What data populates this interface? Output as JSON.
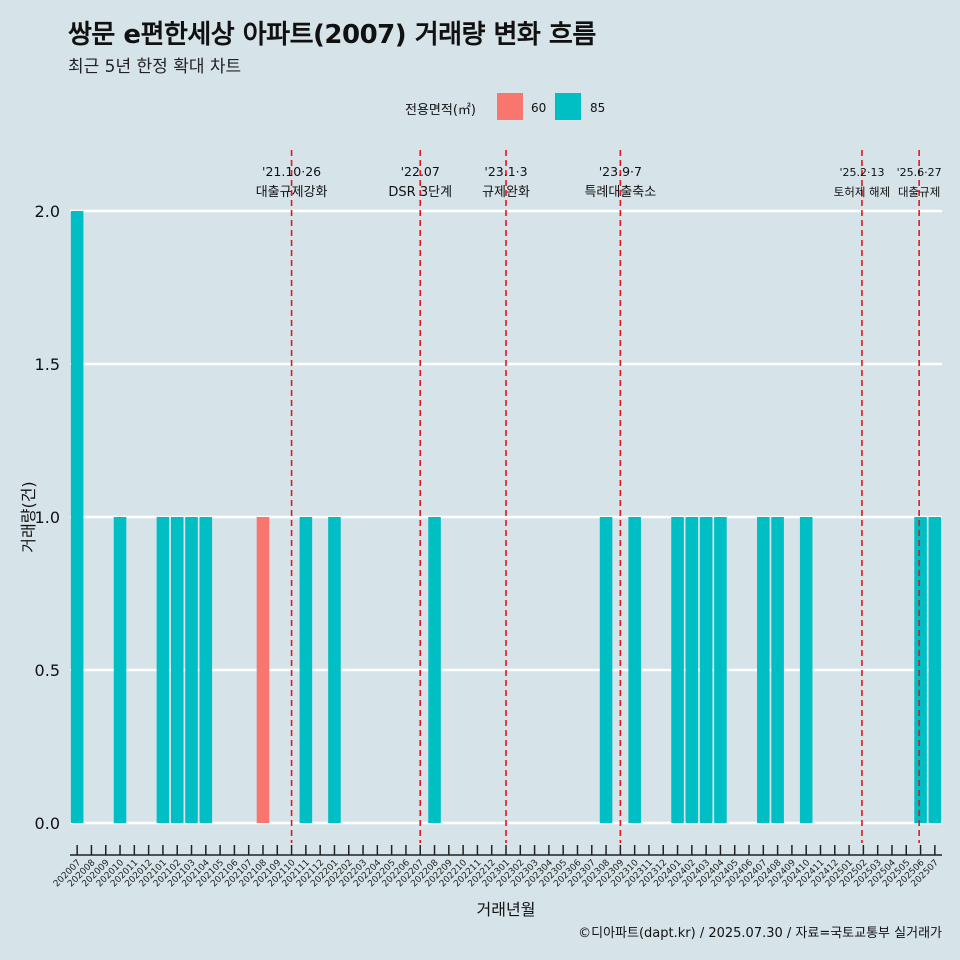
{
  "title": "쌍문 e편한세상 아파트(2007) 거래량 변화 흐름",
  "subtitle": "최근 5년 한정 확대 차트",
  "caption": "©디아파트(dapt.kr) / 2025.07.30 / 자료=국토교통부 실거래가",
  "legend": {
    "title": "전용면적(㎡)",
    "items": [
      {
        "label": "60",
        "color": "#f8766d"
      },
      {
        "label": "85",
        "color": "#00bfc4"
      }
    ]
  },
  "chart_data": {
    "type": "bar",
    "stacked": true,
    "xlabel": "거래년월",
    "ylabel": "거래량(건)",
    "ylim": [
      0,
      2
    ],
    "yticks": [
      "0.0",
      "0.5",
      "1.0",
      "1.5",
      "2.0"
    ],
    "ytick_values": [
      0,
      0.5,
      1,
      1.5,
      2
    ],
    "grid": true,
    "categories": [
      "202007",
      "202008",
      "202009",
      "202010",
      "202011",
      "202012",
      "202101",
      "202102",
      "202103",
      "202104",
      "202105",
      "202106",
      "202107",
      "202108",
      "202109",
      "202110",
      "202111",
      "202112",
      "202201",
      "202202",
      "202203",
      "202204",
      "202205",
      "202206",
      "202207",
      "202208",
      "202209",
      "202210",
      "202211",
      "202212",
      "202301",
      "202302",
      "202303",
      "202304",
      "202305",
      "202306",
      "202307",
      "202308",
      "202309",
      "202310",
      "202311",
      "202312",
      "202401",
      "202402",
      "202403",
      "202404",
      "202405",
      "202406",
      "202407",
      "202408",
      "202409",
      "202410",
      "202411",
      "202412",
      "202501",
      "202502",
      "202503",
      "202504",
      "202505",
      "202506",
      "202507"
    ],
    "series": [
      {
        "name": "60",
        "color": "#f8766d",
        "values": [
          0,
          0,
          0,
          0,
          0,
          0,
          0,
          0,
          0,
          0,
          0,
          0,
          0,
          1,
          0,
          0,
          0,
          0,
          0,
          0,
          0,
          0,
          0,
          0,
          0,
          0,
          0,
          0,
          0,
          0,
          0,
          0,
          0,
          0,
          0,
          0,
          0,
          0,
          0,
          0,
          0,
          0,
          0,
          0,
          0,
          0,
          0,
          0,
          0,
          0,
          0,
          0,
          0,
          0,
          0,
          0,
          0,
          0,
          0,
          0,
          0
        ]
      },
      {
        "name": "85",
        "color": "#00bfc4",
        "values": [
          2,
          0,
          0,
          1,
          0,
          0,
          1,
          1,
          1,
          1,
          0,
          0,
          0,
          0,
          0,
          0,
          1,
          0,
          1,
          0,
          0,
          0,
          0,
          0,
          0,
          1,
          0,
          0,
          0,
          0,
          0,
          0,
          0,
          0,
          0,
          0,
          0,
          1,
          0,
          1,
          0,
          0,
          1,
          1,
          1,
          1,
          0,
          0,
          1,
          1,
          0,
          1,
          0,
          0,
          0,
          0,
          0,
          0,
          0,
          1,
          1
        ]
      }
    ],
    "annotations": [
      {
        "x": 15.5,
        "date": "'21.10·26",
        "text": "대출규제강화"
      },
      {
        "x": 24.5,
        "date": "'22.07",
        "text": "DSR 3단계"
      },
      {
        "x": 30.5,
        "date": "'23.1·3",
        "text": "규제완화"
      },
      {
        "x": 38.5,
        "date": "'23.9·7",
        "text": "특례대출축소"
      },
      {
        "x": 55.4,
        "date": "'25.2·13",
        "text": "토허제 해제"
      },
      {
        "x": 59.4,
        "date": "'25.6·27",
        "text": "대출규제"
      }
    ]
  }
}
